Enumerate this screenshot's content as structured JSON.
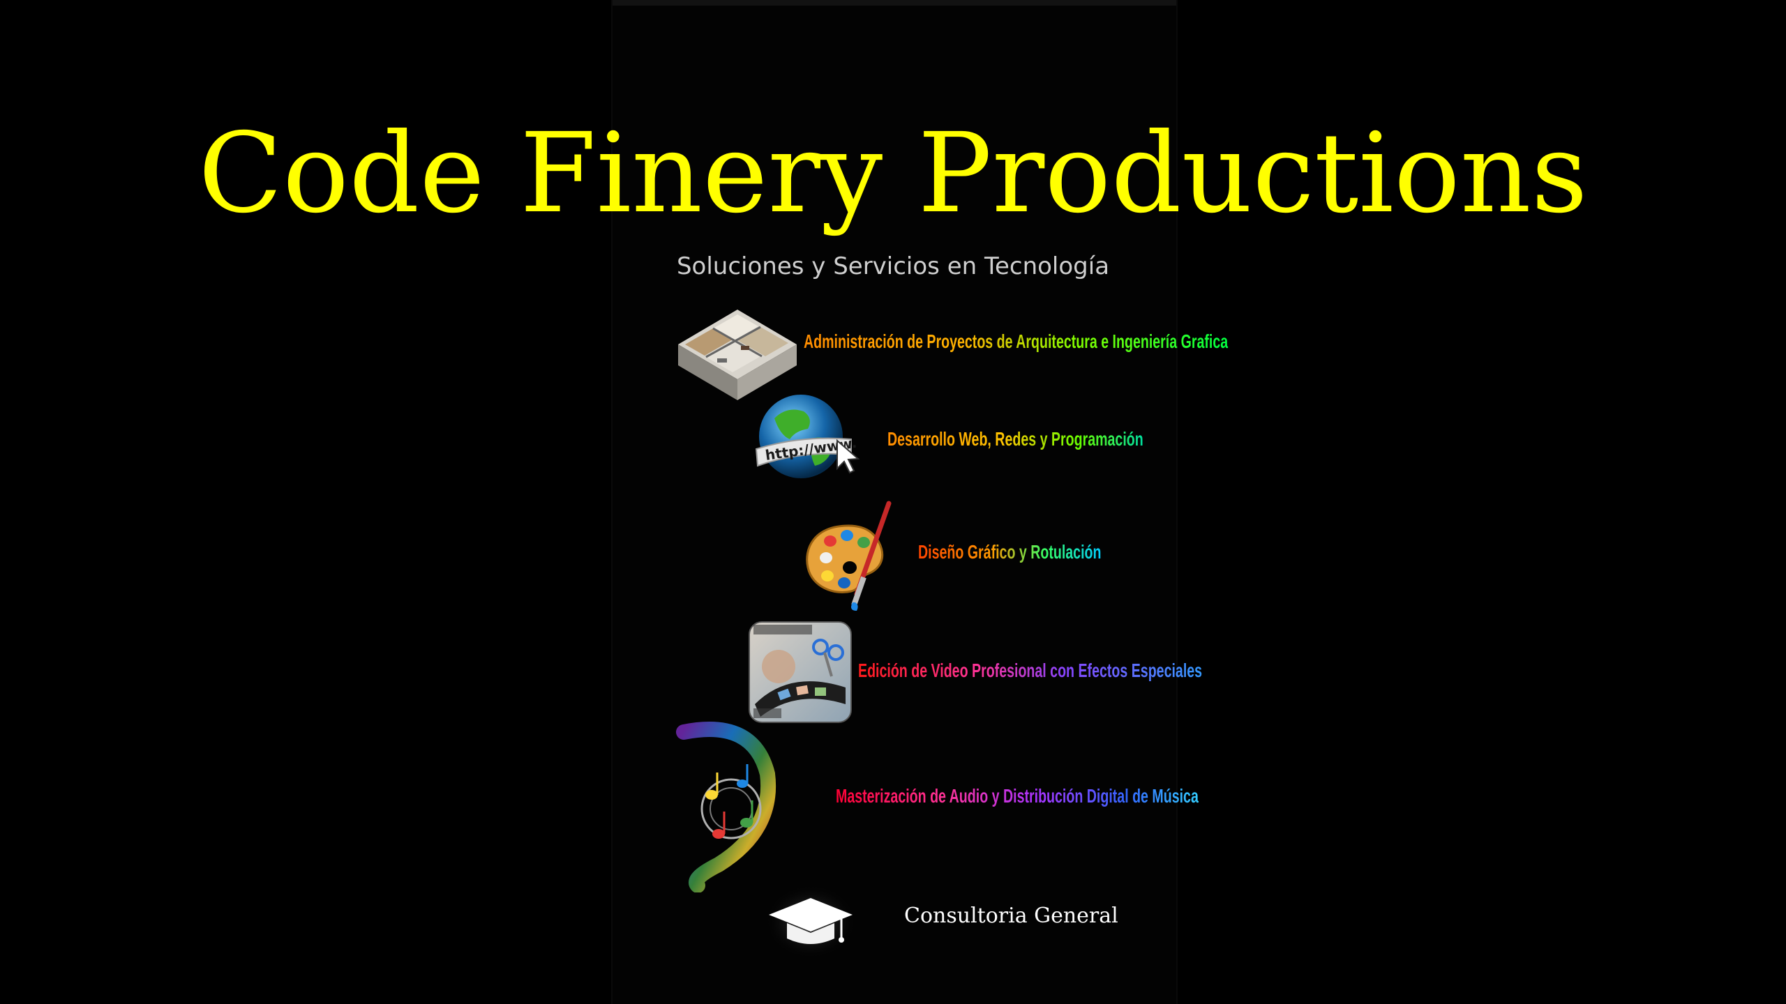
{
  "header": {
    "title": "Code Finery Productions",
    "subtitle": "Soluciones y Servicios en Tecnología"
  },
  "services": [
    {
      "label": "Administración de Proyectos de Arquitectura e Ingeniería Grafica",
      "icon": "floor-plan-icon"
    },
    {
      "label": "Desarrollo Web, Redes y Programación",
      "icon": "globe-www-icon"
    },
    {
      "label": "Diseño Gráfico y Rotulación",
      "icon": "paint-palette-icon"
    },
    {
      "label": "Edición de Video Profesional con Efectos Especiales",
      "icon": "film-strip-icon"
    },
    {
      "label": "Masterización de Audio y Distribución Digital de Música",
      "icon": "music-notes-icon"
    },
    {
      "label": "Consultoria General",
      "icon": "graduation-cap-icon"
    }
  ],
  "colors": {
    "background": "#000000",
    "title": "#ffff00",
    "subtitle": "#cfcfcf",
    "consult_label": "#ffffff"
  }
}
